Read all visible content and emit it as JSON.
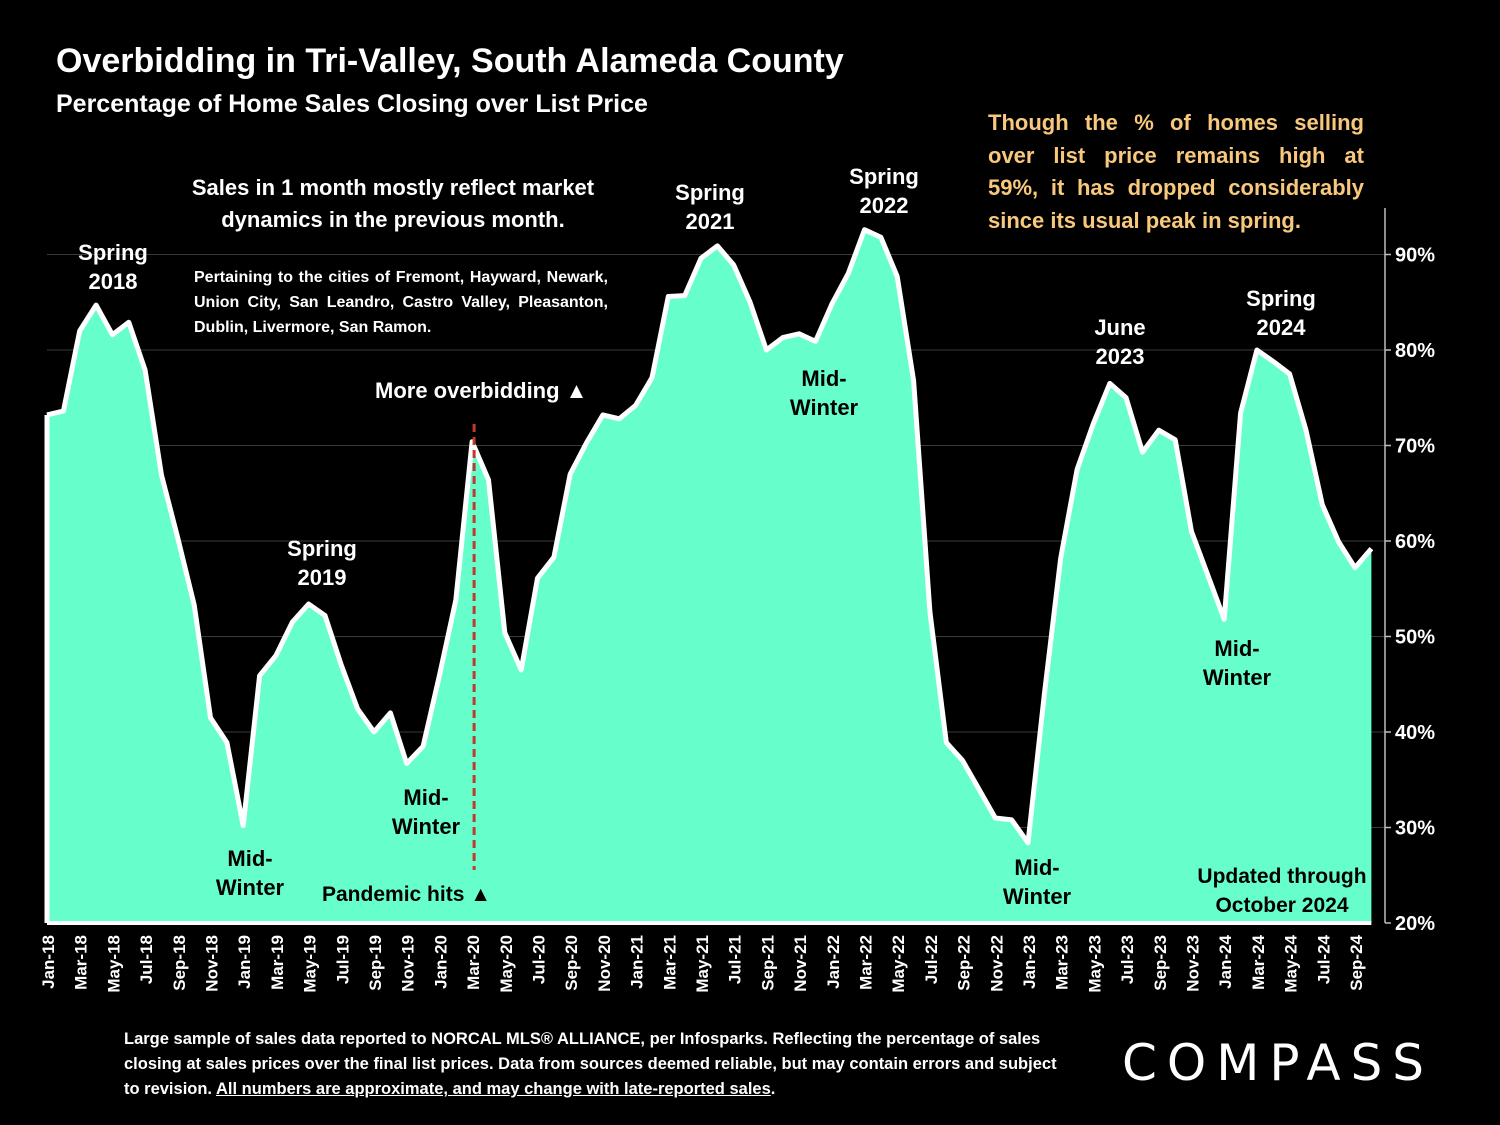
{
  "title": "Overbidding in Tri-Valley, South Alameda County",
  "subtitle": "Percentage of Home Sales Closing over List Price",
  "notes": {
    "yellow_line1": "Though the % of homes selling",
    "yellow_line2": "over list price remains high at",
    "yellow_line3": "59%, it has dropped considerably",
    "yellow_line4": "since its usual peak in spring.",
    "main_line1": "Sales in 1 month mostly reflect market",
    "main_line2": "dynamics in the previous month.",
    "cities": "Pertaining to the cities of Fremont, Hayward, Newark, Union City, San Leandro, Castro Valley, Pleasanton, Dublin, Livermore, San Ramon.",
    "more_overbidding": "More overbidding ▲",
    "pandemic": "Pandemic hits ▲",
    "updated_line1": "Updated through",
    "updated_line2": "October 2024"
  },
  "footnote": {
    "text": "Large sample of sales data reported to NORCAL MLS® ALLIANCE, per Infosparks. Reflecting the percentage of sales closing at sales prices over the final list prices. Data from sources deemed reliable, but may contain errors and subject to revision. ",
    "underlined": "All numbers are approximate, and may change with late-reported sales",
    "end": "."
  },
  "logo": "COMPASS",
  "colors": {
    "fill": "#66ffcc",
    "line": "#ffffff",
    "background": "#000000",
    "highlight": "#f8c97d",
    "pandemic_line": "#c0392b"
  },
  "chart_data": {
    "type": "area",
    "y_unit": "%",
    "ylim": [
      20,
      95
    ],
    "y_ticks": [
      "20%",
      "30%",
      "40%",
      "50%",
      "60%",
      "70%",
      "80%",
      "90%"
    ],
    "y_tick_values": [
      20,
      30,
      40,
      50,
      60,
      70,
      80,
      90
    ],
    "grid": true,
    "x_tick_labels": [
      "Jan-18",
      "Mar-18",
      "May-18",
      "Jul-18",
      "Sep-18",
      "Nov-18",
      "Jan-19",
      "Mar-19",
      "May-19",
      "Jul-19",
      "Sep-19",
      "Nov-19",
      "Jan-20",
      "Mar-20",
      "May-20",
      "Jul-20",
      "Sep-20",
      "Nov-20",
      "Jan-21",
      "Mar-21",
      "May-21",
      "Jul-21",
      "Sep-21",
      "Nov-21",
      "Jan-22",
      "Mar-22",
      "May-22",
      "Jul-22",
      "Sep-22",
      "Nov-22",
      "Jan-23",
      "Mar-23",
      "May-23",
      "Jul-23",
      "Sep-23",
      "Nov-23",
      "Jan-24",
      "Mar-24",
      "May-24",
      "Jul-24",
      "Sep-24"
    ],
    "x": [
      "Jan-18",
      "Feb-18",
      "Mar-18",
      "Apr-18",
      "May-18",
      "Jun-18",
      "Jul-18",
      "Aug-18",
      "Sep-18",
      "Oct-18",
      "Nov-18",
      "Dec-18",
      "Jan-19",
      "Feb-19",
      "Mar-19",
      "Apr-19",
      "May-19",
      "Jun-19",
      "Jul-19",
      "Aug-19",
      "Sep-19",
      "Oct-19",
      "Nov-19",
      "Dec-19",
      "Jan-20",
      "Feb-20",
      "Mar-20",
      "Apr-20",
      "May-20",
      "Jun-20",
      "Jul-20",
      "Aug-20",
      "Sep-20",
      "Oct-20",
      "Nov-20",
      "Dec-20",
      "Jan-21",
      "Feb-21",
      "Mar-21",
      "Apr-21",
      "May-21",
      "Jun-21",
      "Jul-21",
      "Aug-21",
      "Sep-21",
      "Oct-21",
      "Nov-21",
      "Dec-21",
      "Jan-22",
      "Feb-22",
      "Mar-22",
      "Apr-22",
      "May-22",
      "Jun-22",
      "Jul-22",
      "Aug-22",
      "Sep-22",
      "Oct-22",
      "Nov-22",
      "Dec-22",
      "Jan-23",
      "Feb-23",
      "Mar-23",
      "Apr-23",
      "May-23",
      "Jun-23",
      "Jul-23",
      "Aug-23",
      "Sep-23",
      "Oct-23",
      "Nov-23",
      "Dec-23",
      "Jan-24",
      "Feb-24",
      "Mar-24",
      "Apr-24",
      "May-24",
      "Jun-24",
      "Jul-24",
      "Aug-24",
      "Sep-24",
      "Oct-24"
    ],
    "values": [
      73.2,
      73.6,
      82.0,
      84.7,
      81.6,
      82.9,
      77.9,
      66.9,
      60.3,
      53.3,
      41.5,
      38.9,
      30.2,
      45.9,
      48.0,
      51.5,
      53.4,
      52.2,
      47.0,
      42.4,
      40.0,
      42.0,
      36.7,
      38.5,
      45.9,
      53.8,
      70.4,
      66.4,
      50.4,
      46.5,
      56.1,
      58.3,
      67.0,
      70.3,
      73.2,
      72.8,
      74.2,
      77.1,
      85.6,
      85.7,
      89.6,
      90.9,
      88.9,
      85.0,
      80.0,
      81.3,
      81.7,
      80.9,
      84.8,
      88.0,
      92.6,
      91.8,
      87.7,
      76.8,
      52.6,
      38.9,
      37.0,
      34.0,
      31.0,
      30.8,
      28.4,
      44.0,
      58.2,
      67.5,
      72.3,
      76.5,
      75.0,
      69.3,
      71.6,
      70.6,
      61.0,
      56.4,
      51.8,
      73.4,
      80.0,
      78.8,
      77.5,
      71.6,
      63.8,
      59.9,
      57.2,
      59.2
    ],
    "annotations": [
      {
        "lines": [
          "Spring",
          "2018"
        ],
        "at": "Mar-18"
      },
      {
        "lines": [
          "Mid-",
          "Winter"
        ],
        "at": "Dec-18"
      },
      {
        "lines": [
          "Spring",
          "2019"
        ],
        "at": "May-19"
      },
      {
        "lines": [
          "Mid-",
          "Winter"
        ],
        "at": "Dec-19"
      },
      {
        "lines": [
          "Spring",
          "2021"
        ],
        "at": "May-21"
      },
      {
        "lines": [
          "Spring",
          "2022"
        ],
        "at": "Mar-22"
      },
      {
        "lines": [
          "Mid-",
          "Winter"
        ],
        "at": "Nov-21"
      },
      {
        "lines": [
          "June",
          "2023"
        ],
        "at": "Jun-23"
      },
      {
        "lines": [
          "Mid-",
          "Winter"
        ],
        "at": "Jan-23"
      },
      {
        "lines": [
          "Spring",
          "2024"
        ],
        "at": "Mar-24"
      },
      {
        "lines": [
          "Mid-",
          "Winter"
        ],
        "at": "Jan-24"
      }
    ],
    "event_marker": {
      "at": "Mar-20",
      "label": "Pandemic hits"
    }
  }
}
